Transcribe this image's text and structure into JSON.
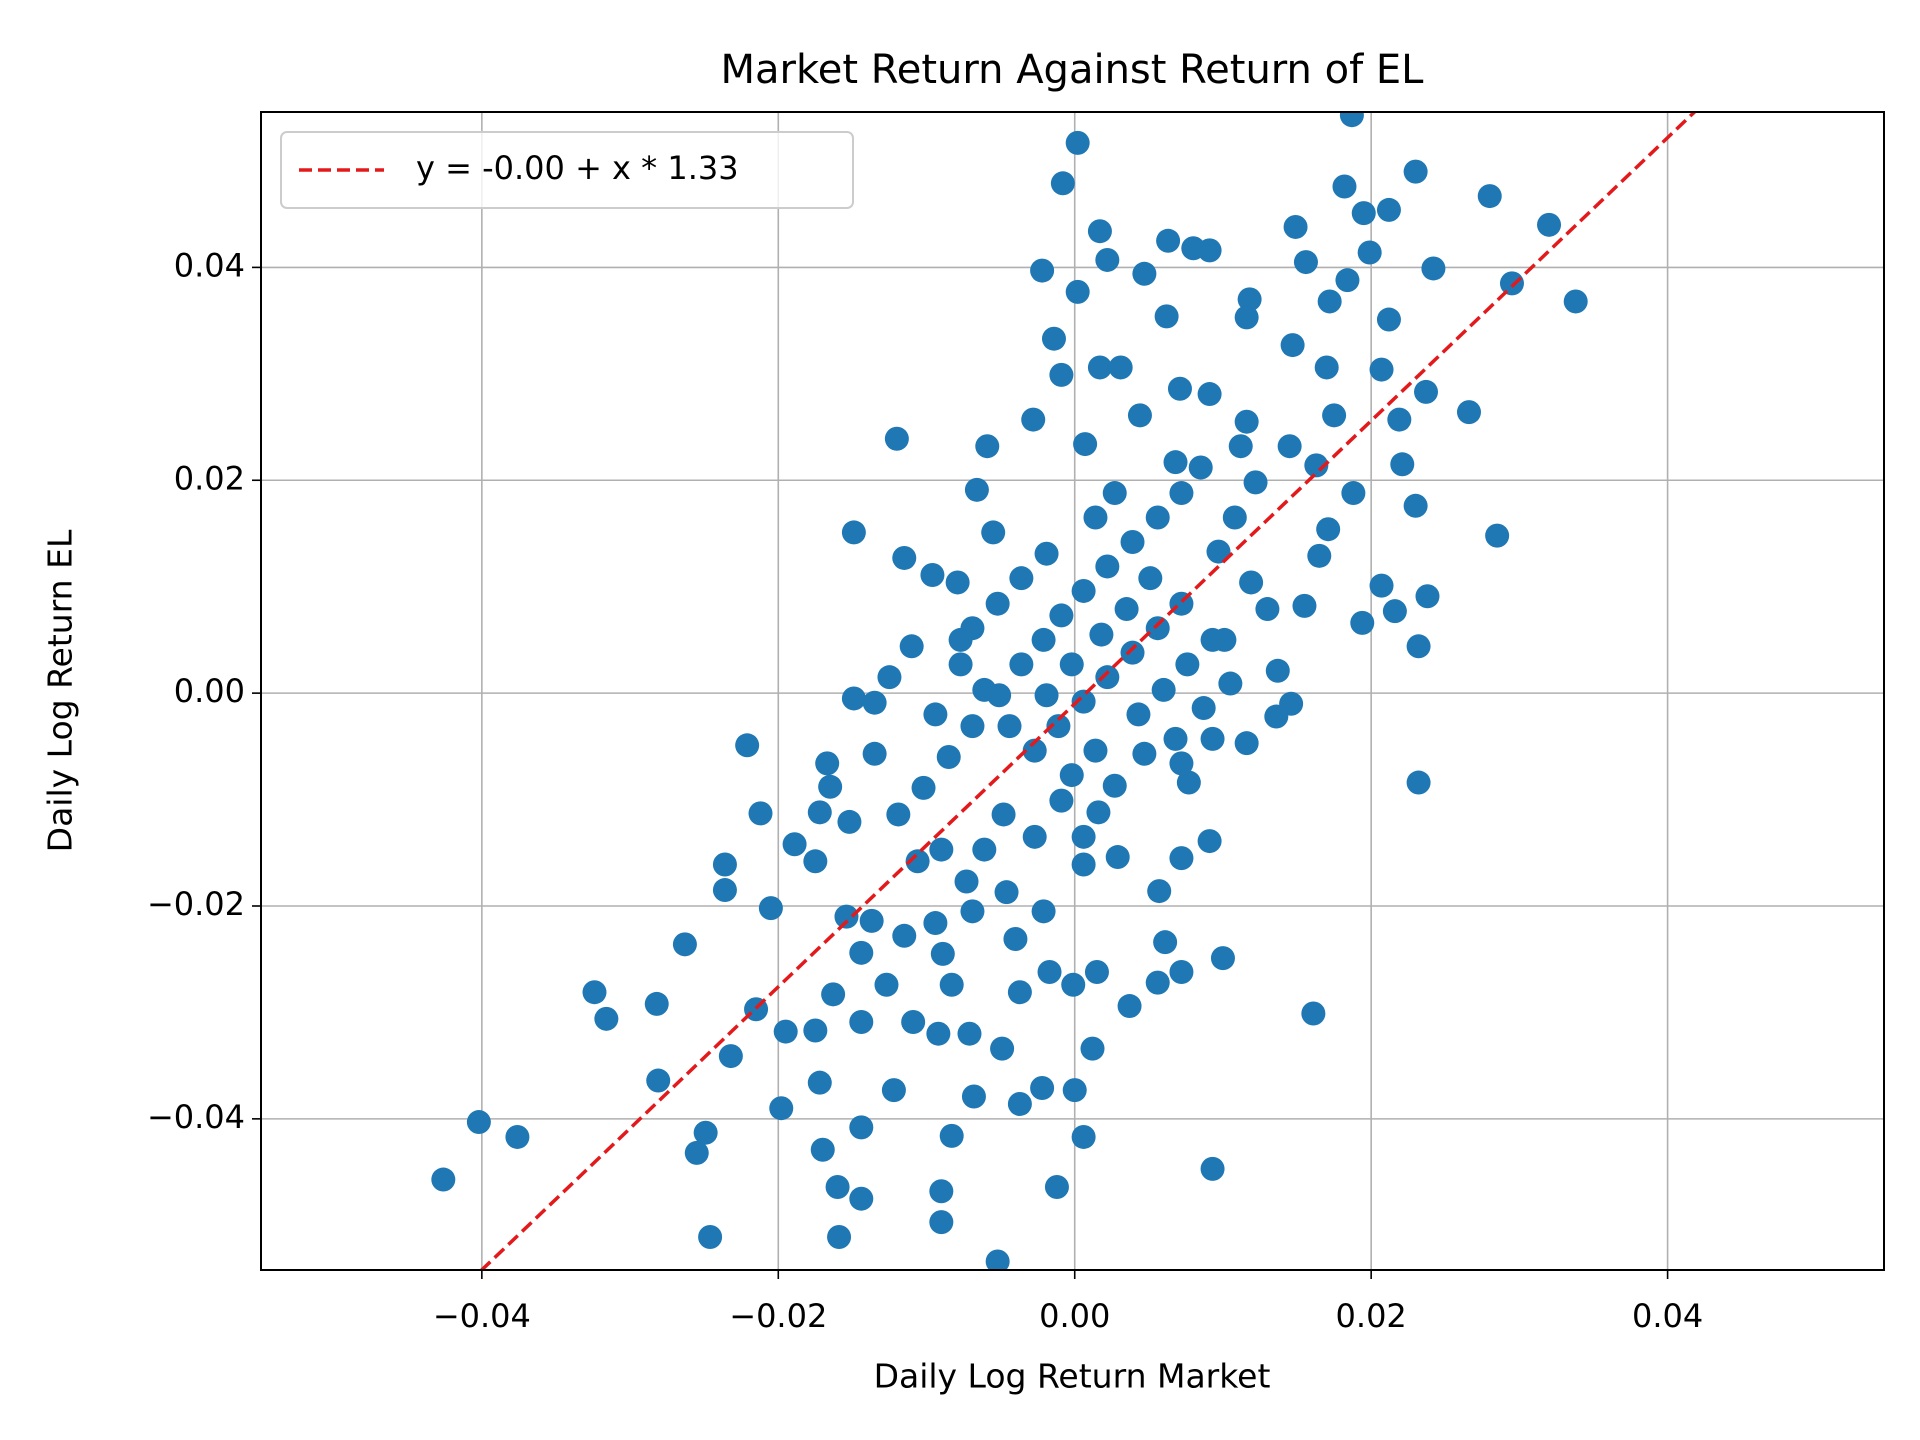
{
  "chart_data": {
    "type": "scatter",
    "title": "Market Return Against Return of EL",
    "xlabel": "Daily Log Return Market",
    "ylabel": "Daily Log Return EL",
    "xlim": [
      -0.0549,
      0.0546
    ],
    "ylim": [
      -0.0542,
      0.0546
    ],
    "xticks": [
      {
        "value": -0.04,
        "label": "−0.04"
      },
      {
        "value": -0.02,
        "label": "−0.02"
      },
      {
        "value": 0,
        "label": "0.00"
      },
      0.02,
      0.04
    ],
    "yticks": [
      {
        "value": -0.04,
        "label": "−0.04"
      },
      {
        "value": -0.02,
        "label": "−0.02"
      },
      {
        "value": 0,
        "label": "0.00"
      },
      0.02,
      0.04
    ],
    "grid": true,
    "legend": "upper left",
    "series": [
      {
        "type": "scatter",
        "color": "#1f77b4",
        "x": [
          -0.0426,
          -0.0402,
          -0.0376,
          -0.0324,
          -0.0316,
          -0.0282,
          -0.0281,
          -0.0263,
          -0.0255,
          -0.0249,
          -0.0246,
          -0.0236,
          -0.0236,
          -0.0232,
          -0.0221,
          -0.0212,
          -0.0205,
          -0.0215,
          -0.0198,
          -0.0195,
          -0.0189,
          -0.0175,
          -0.0172,
          -0.017,
          -0.016,
          -0.0159,
          -0.0144,
          -0.0144,
          -0.0149,
          -0.0149,
          -0.012,
          -0.0122,
          -0.009,
          -0.009,
          -0.0083,
          -0.0068,
          -0.0052,
          -0.0037,
          -0.0022,
          -0.0012,
          0,
          0.0006,
          0.0012,
          0.0015,
          0.0037,
          0.0056,
          0.0061,
          0.0072,
          0.01,
          0.0093,
          0.0161,
          0.0232,
          0.0238,
          0.0232,
          0.0216,
          0.0194,
          0.0207,
          0.023,
          0.0221,
          0.0219,
          0.0285,
          0.0266,
          0.0237,
          0.0338,
          0.0295,
          0.032,
          0.028,
          0.023,
          0.0242,
          0.0212,
          0.0207,
          0.0199,
          0.0195,
          0.0212,
          0.0182,
          0.0187,
          0.0184,
          0.0172,
          0.0156,
          0.0149,
          0.0147,
          0.017,
          0.0175,
          0.0118,
          0.0116,
          0.0091,
          0.0071,
          0.0063,
          0.008,
          0.0091,
          0.0047,
          0.0062,
          0.0017,
          0.0022,
          0.0002,
          -0.0008,
          -0.0022,
          0.0002,
          -0.0014,
          0.0017,
          0.0031,
          -0.0009,
          0.0044,
          -0.0028,
          0.0007,
          -0.0059,
          -0.0066,
          -0.0055,
          -0.0115,
          -0.0096,
          -0.0079,
          -0.011,
          -0.0125,
          -0.0135,
          -0.0135,
          -0.0167,
          -0.0165,
          -0.0172,
          -0.0152,
          -0.0175,
          -0.0154,
          -0.0137,
          -0.0144,
          -0.0163,
          -0.0144,
          -0.0127,
          -0.0109,
          -0.0092,
          -0.0089,
          -0.0083,
          -0.0071,
          -0.0049,
          -0.0037,
          -0.0017,
          -0.0001,
          -0.004,
          -0.0021,
          -0.0046,
          0.0006,
          0.0029,
          0.0057,
          0.0072,
          0.0091,
          0.0077,
          0.0116,
          0.0146,
          0.0136,
          0.0137,
          0.0155,
          0.0171,
          0.0165,
          0.0188,
          0.0163,
          0.0145,
          0.0116,
          0.0112,
          0.0122,
          0.0108,
          0.0097,
          0.0119,
          0.013,
          0.0101,
          0.0105,
          0.0087,
          0.0068,
          0.0047,
          0.0027,
          0.0016,
          -0.0009,
          -0.0027,
          -0.0048,
          -0.0061,
          -0.0073,
          -0.009,
          -0.0106,
          -0.0119,
          -0.0102,
          -0.0085,
          -0.0069,
          -0.0051,
          -0.0036,
          -0.0021,
          -0.0009,
          0.0006,
          0.0022,
          0.0039,
          0.0056,
          0.0072,
          0.0085,
          0.0068,
          0.0027,
          0.0014,
          -0.0019,
          -0.0036,
          -0.0052,
          -0.0069,
          -0.0077,
          -0.0061,
          -0.0044,
          -0.0027,
          -0.0011,
          0.0006,
          0.0022,
          0.0039,
          0.0056,
          0.0072,
          0.0051,
          0.0035,
          0.0018,
          -0.0002,
          -0.0019,
          0.0043,
          0.006,
          0.0076,
          0.0093,
          0.0072,
          0.0093,
          0.0014,
          -0.0002,
          0.0006,
          -0.0094,
          -0.0069,
          -0.0115,
          -0.0077,
          -0.0094
        ],
        "values": [
          -0.0457,
          -0.0403,
          -0.0417,
          -0.0281,
          -0.0306,
          -0.0292,
          -0.0364,
          -0.0236,
          -0.0432,
          -0.0413,
          -0.0511,
          -0.0161,
          -0.0185,
          -0.0341,
          -0.0049,
          -0.0113,
          -0.0202,
          -0.0297,
          -0.039,
          -0.0318,
          -0.0142,
          -0.0317,
          -0.0366,
          -0.0429,
          -0.0464,
          -0.0511,
          -0.0475,
          -0.0408,
          0.0151,
          -0.0005,
          0.0239,
          -0.0373,
          -0.0468,
          -0.0497,
          -0.0416,
          -0.0379,
          -0.0534,
          -0.0386,
          -0.0371,
          -0.0464,
          -0.0373,
          -0.0417,
          -0.0334,
          -0.0262,
          -0.0294,
          -0.0272,
          -0.0234,
          -0.0262,
          -0.0249,
          -0.0447,
          -0.0301,
          -0.0084,
          0.0091,
          0.0044,
          0.0077,
          0.0066,
          0.0101,
          0.0176,
          0.0215,
          0.0257,
          0.0148,
          0.0264,
          0.0283,
          0.0368,
          0.0385,
          0.044,
          0.0467,
          0.049,
          0.0399,
          0.0351,
          0.0304,
          0.0414,
          0.0451,
          0.0454,
          0.0476,
          0.0543,
          0.0388,
          0.0368,
          0.0405,
          0.0438,
          0.0327,
          0.0306,
          0.0261,
          0.037,
          0.0353,
          0.0281,
          0.0286,
          0.0425,
          0.0418,
          0.0416,
          0.0394,
          0.0354,
          0.0434,
          0.0407,
          0.0517,
          0.0479,
          0.0397,
          0.0377,
          0.0333,
          0.0306,
          0.0306,
          0.0299,
          0.0261,
          0.0257,
          0.0234,
          0.0232,
          0.0191,
          0.0151,
          0.0127,
          0.0111,
          0.0104,
          0.0044,
          0.0015,
          -0.0009,
          -0.0057,
          -0.0066,
          -0.0088,
          -0.0112,
          -0.0121,
          -0.0158,
          -0.021,
          -0.0214,
          -0.0244,
          -0.0283,
          -0.0309,
          -0.0274,
          -0.0309,
          -0.032,
          -0.0245,
          -0.0274,
          -0.032,
          -0.0334,
          -0.0281,
          -0.0262,
          -0.0274,
          -0.0231,
          -0.0205,
          -0.0187,
          -0.0161,
          -0.0154,
          -0.0186,
          -0.0155,
          -0.0139,
          -0.0084,
          -0.0047,
          -0.001,
          -0.0022,
          0.0021,
          0.0082,
          0.0154,
          0.0129,
          0.0188,
          0.0214,
          0.0232,
          0.0255,
          0.0232,
          0.0198,
          0.0165,
          0.0133,
          0.0104,
          0.0079,
          0.005,
          0.0009,
          -0.0014,
          -0.0043,
          -0.0057,
          -0.0087,
          -0.0112,
          -0.0101,
          -0.0135,
          -0.0114,
          -0.0147,
          -0.0177,
          -0.0147,
          -0.0158,
          -0.0114,
          -0.0089,
          -0.006,
          -0.0031,
          -0.0002,
          0.0027,
          0.005,
          0.0073,
          0.0096,
          0.0119,
          0.0142,
          0.0165,
          0.0188,
          0.0212,
          0.0217,
          0.0188,
          0.0165,
          0.0131,
          0.0108,
          0.0084,
          0.0061,
          0.0027,
          0.0003,
          -0.0031,
          -0.0054,
          -0.0031,
          -0.0008,
          0.0015,
          0.0038,
          0.0061,
          0.0084,
          0.0108,
          0.0079,
          0.0055,
          0.0027,
          -0.0002,
          -0.002,
          0.0003,
          0.0027,
          0.005,
          -0.0066,
          -0.0043,
          -0.0054,
          -0.0077,
          -0.0135,
          -0.0216,
          -0.0205,
          -0.0228,
          0.005,
          -0.002
        ]
      },
      {
        "type": "line",
        "name": "y = -0.00 + x * 1.33",
        "color": "#e31a1c",
        "dashed": true,
        "x": [
          -0.0549,
          0.0546
        ],
        "values": [
          -0.074,
          0.0716
        ]
      }
    ]
  }
}
